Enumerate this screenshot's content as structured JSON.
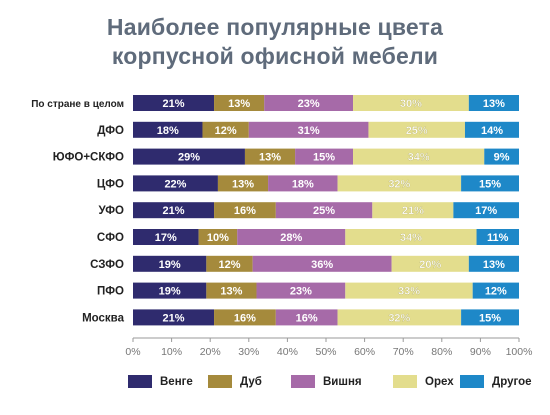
{
  "title_line1": "Наиболее популярные цвета",
  "title_line2": "корпусной офисной мебели",
  "chart_data": {
    "type": "bar",
    "orientation": "horizontal",
    "stacked": true,
    "categories": [
      "По стране в целом",
      "ДФО",
      "ЮФО+СКФО",
      "ЦФО",
      "УФО",
      "СФО",
      "СЗФО",
      "ПФО",
      "Москва"
    ],
    "series": [
      {
        "name": "Венге",
        "color": "#2f2b6e",
        "values": [
          21,
          18,
          29,
          22,
          21,
          17,
          19,
          19,
          21
        ]
      },
      {
        "name": "Дуб",
        "color": "#a58a3c",
        "values": [
          13,
          12,
          13,
          13,
          16,
          10,
          12,
          13,
          16
        ]
      },
      {
        "name": "Вишня",
        "color": "#a66aa8",
        "values": [
          23,
          31,
          15,
          18,
          25,
          28,
          36,
          23,
          16
        ]
      },
      {
        "name": "Орех",
        "color": "#e3dd8d",
        "values": [
          30,
          25,
          34,
          32,
          21,
          34,
          20,
          33,
          32
        ]
      },
      {
        "name": "Другое",
        "color": "#1e88c8",
        "values": [
          13,
          14,
          9,
          15,
          17,
          11,
          13,
          12,
          15
        ]
      }
    ],
    "value_format": "{v}%",
    "x_ticks": [
      "0%",
      "10%",
      "20%",
      "30%",
      "40%",
      "50%",
      "60%",
      "70%",
      "80%",
      "90%",
      "100%"
    ],
    "xlim": [
      0,
      100
    ],
    "grid": false,
    "legend_position": "bottom"
  }
}
